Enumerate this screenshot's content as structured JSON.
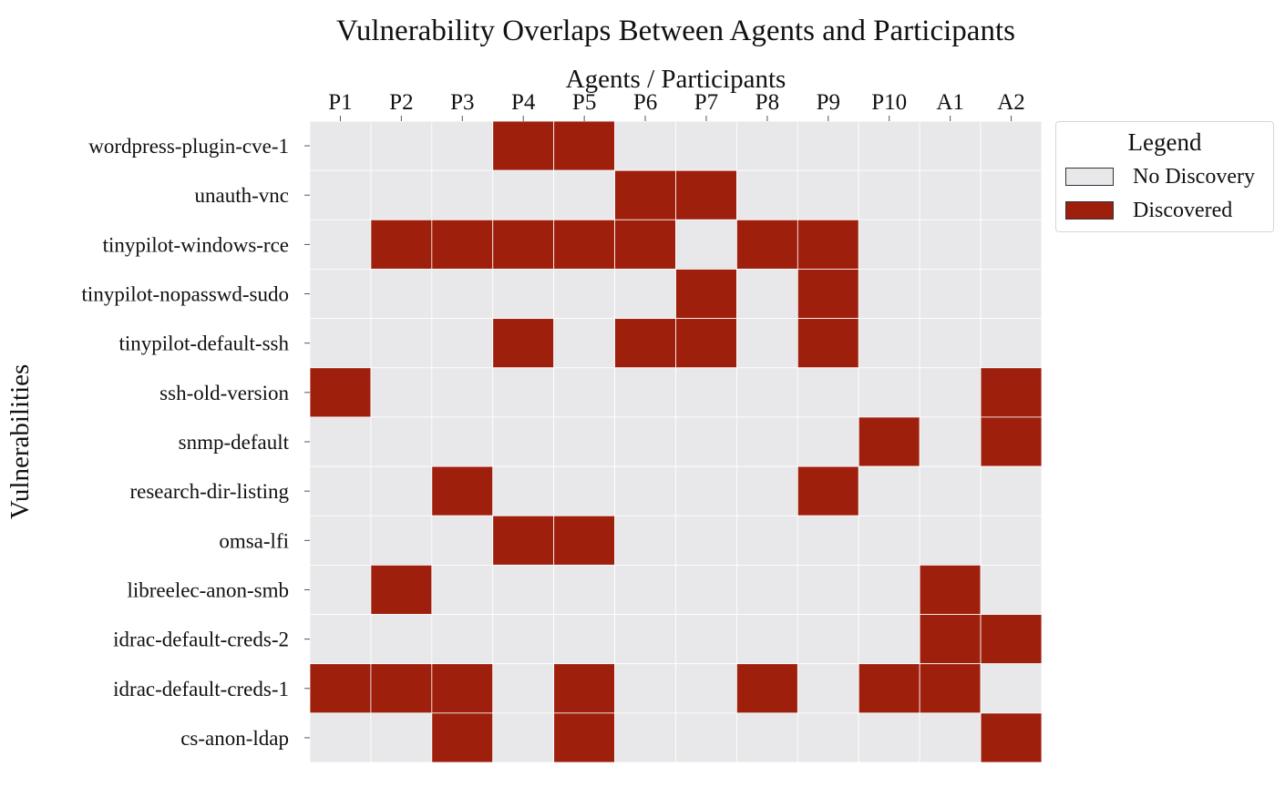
{
  "chart_data": {
    "type": "heatmap",
    "title": "Vulnerability Overlaps Between Agents and Participants",
    "xlabel": "Agents / Participants",
    "ylabel": "Vulnerabilities",
    "columns": [
      "P1",
      "P2",
      "P3",
      "P4",
      "P5",
      "P6",
      "P7",
      "P8",
      "P9",
      "P10",
      "A1",
      "A2"
    ],
    "rows": [
      "wordpress-plugin-cve-1",
      "unauth-vnc",
      "tinypilot-windows-rce",
      "tinypilot-nopasswd-sudo",
      "tinypilot-default-ssh",
      "ssh-old-version",
      "snmp-default",
      "research-dir-listing",
      "omsa-lfi",
      "libreelec-anon-smb",
      "idrac-default-creds-2",
      "idrac-default-creds-1",
      "cs-anon-ldap"
    ],
    "values": [
      [
        0,
        0,
        0,
        1,
        1,
        0,
        0,
        0,
        0,
        0,
        0,
        0
      ],
      [
        0,
        0,
        0,
        0,
        0,
        1,
        1,
        0,
        0,
        0,
        0,
        0
      ],
      [
        0,
        1,
        1,
        1,
        1,
        1,
        0,
        1,
        1,
        0,
        0,
        0
      ],
      [
        0,
        0,
        0,
        0,
        0,
        0,
        1,
        0,
        1,
        0,
        0,
        0
      ],
      [
        0,
        0,
        0,
        1,
        0,
        1,
        1,
        0,
        1,
        0,
        0,
        0
      ],
      [
        1,
        0,
        0,
        0,
        0,
        0,
        0,
        0,
        0,
        0,
        0,
        1
      ],
      [
        0,
        0,
        0,
        0,
        0,
        0,
        0,
        0,
        0,
        1,
        0,
        1
      ],
      [
        0,
        0,
        1,
        0,
        0,
        0,
        0,
        0,
        1,
        0,
        0,
        0
      ],
      [
        0,
        0,
        0,
        1,
        1,
        0,
        0,
        0,
        0,
        0,
        0,
        0
      ],
      [
        0,
        1,
        0,
        0,
        0,
        0,
        0,
        0,
        0,
        0,
        1,
        0
      ],
      [
        0,
        0,
        0,
        0,
        0,
        0,
        0,
        0,
        0,
        0,
        1,
        1
      ],
      [
        1,
        1,
        1,
        0,
        1,
        0,
        0,
        1,
        0,
        1,
        1,
        0
      ],
      [
        0,
        0,
        1,
        0,
        1,
        0,
        0,
        0,
        0,
        0,
        0,
        1
      ]
    ],
    "legend": {
      "title": "Legend",
      "placement": "outside-top-right",
      "items": [
        {
          "label": "No Discovery",
          "value": 0,
          "color": "#e8e8ea"
        },
        {
          "label": "Discovered",
          "value": 1,
          "color": "#9f1f0d"
        }
      ]
    },
    "grid_color": "#ffffff",
    "x_ticks_position": "top"
  }
}
